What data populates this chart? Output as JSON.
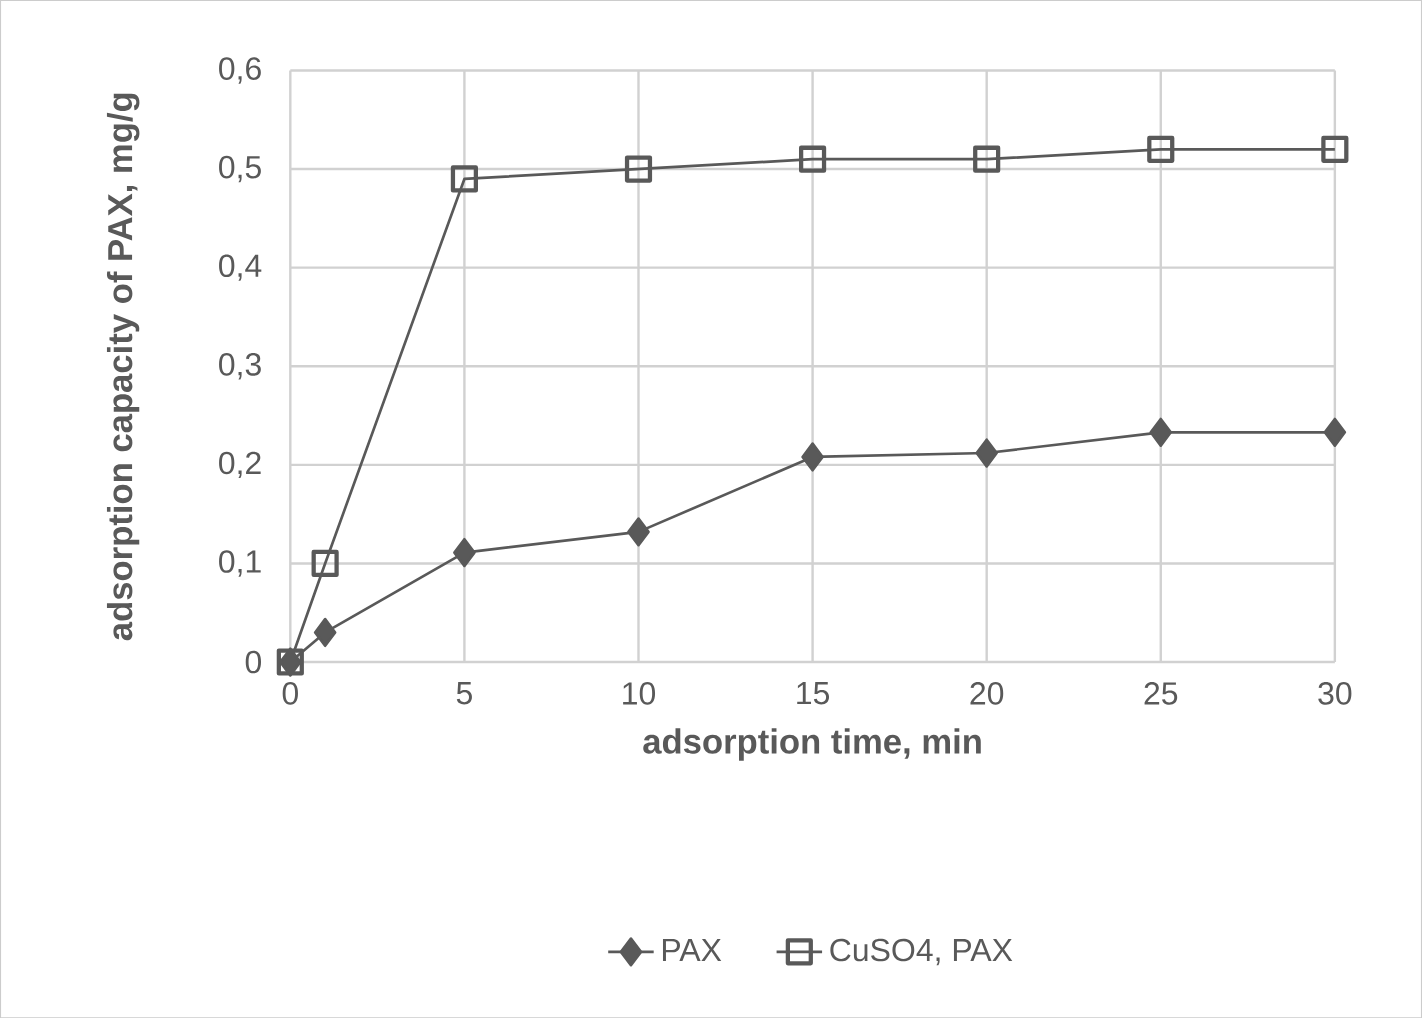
{
  "chart_data": {
    "type": "line",
    "xlabel": "adsorption time, min",
    "ylabel": "adsorption capacity of PAX, mg/g",
    "x": [
      0,
      1,
      5,
      10,
      15,
      20,
      25,
      30
    ],
    "series": [
      {
        "name": "PAX",
        "color": "#595959",
        "marker": "diamond",
        "values": [
          0,
          0.03,
          0.111,
          0.132,
          0.208,
          0.212,
          0.233,
          0.233
        ]
      },
      {
        "name": "CuSO4, PAX",
        "color": "#595959",
        "marker": "square",
        "values": [
          0,
          0.1,
          0.49,
          0.5,
          0.51,
          0.51,
          0.52,
          0.52
        ]
      }
    ],
    "xlim": [
      0,
      30
    ],
    "xticks": [
      0,
      5,
      10,
      15,
      20,
      25,
      30
    ],
    "ylim": [
      0,
      0.6
    ],
    "yticks": [
      {
        "value": 0,
        "label": "0"
      },
      {
        "value": 0.1,
        "label": "0,1"
      },
      {
        "value": 0.2,
        "label": "0,2"
      },
      {
        "value": 0.3,
        "label": "0,3"
      },
      {
        "value": 0.4,
        "label": "0,4"
      },
      {
        "value": 0.5,
        "label": "0,5"
      },
      {
        "value": 0.6,
        "label": "0,6"
      }
    ],
    "grid": true,
    "legend": "bottom",
    "line_style": "solid"
  }
}
